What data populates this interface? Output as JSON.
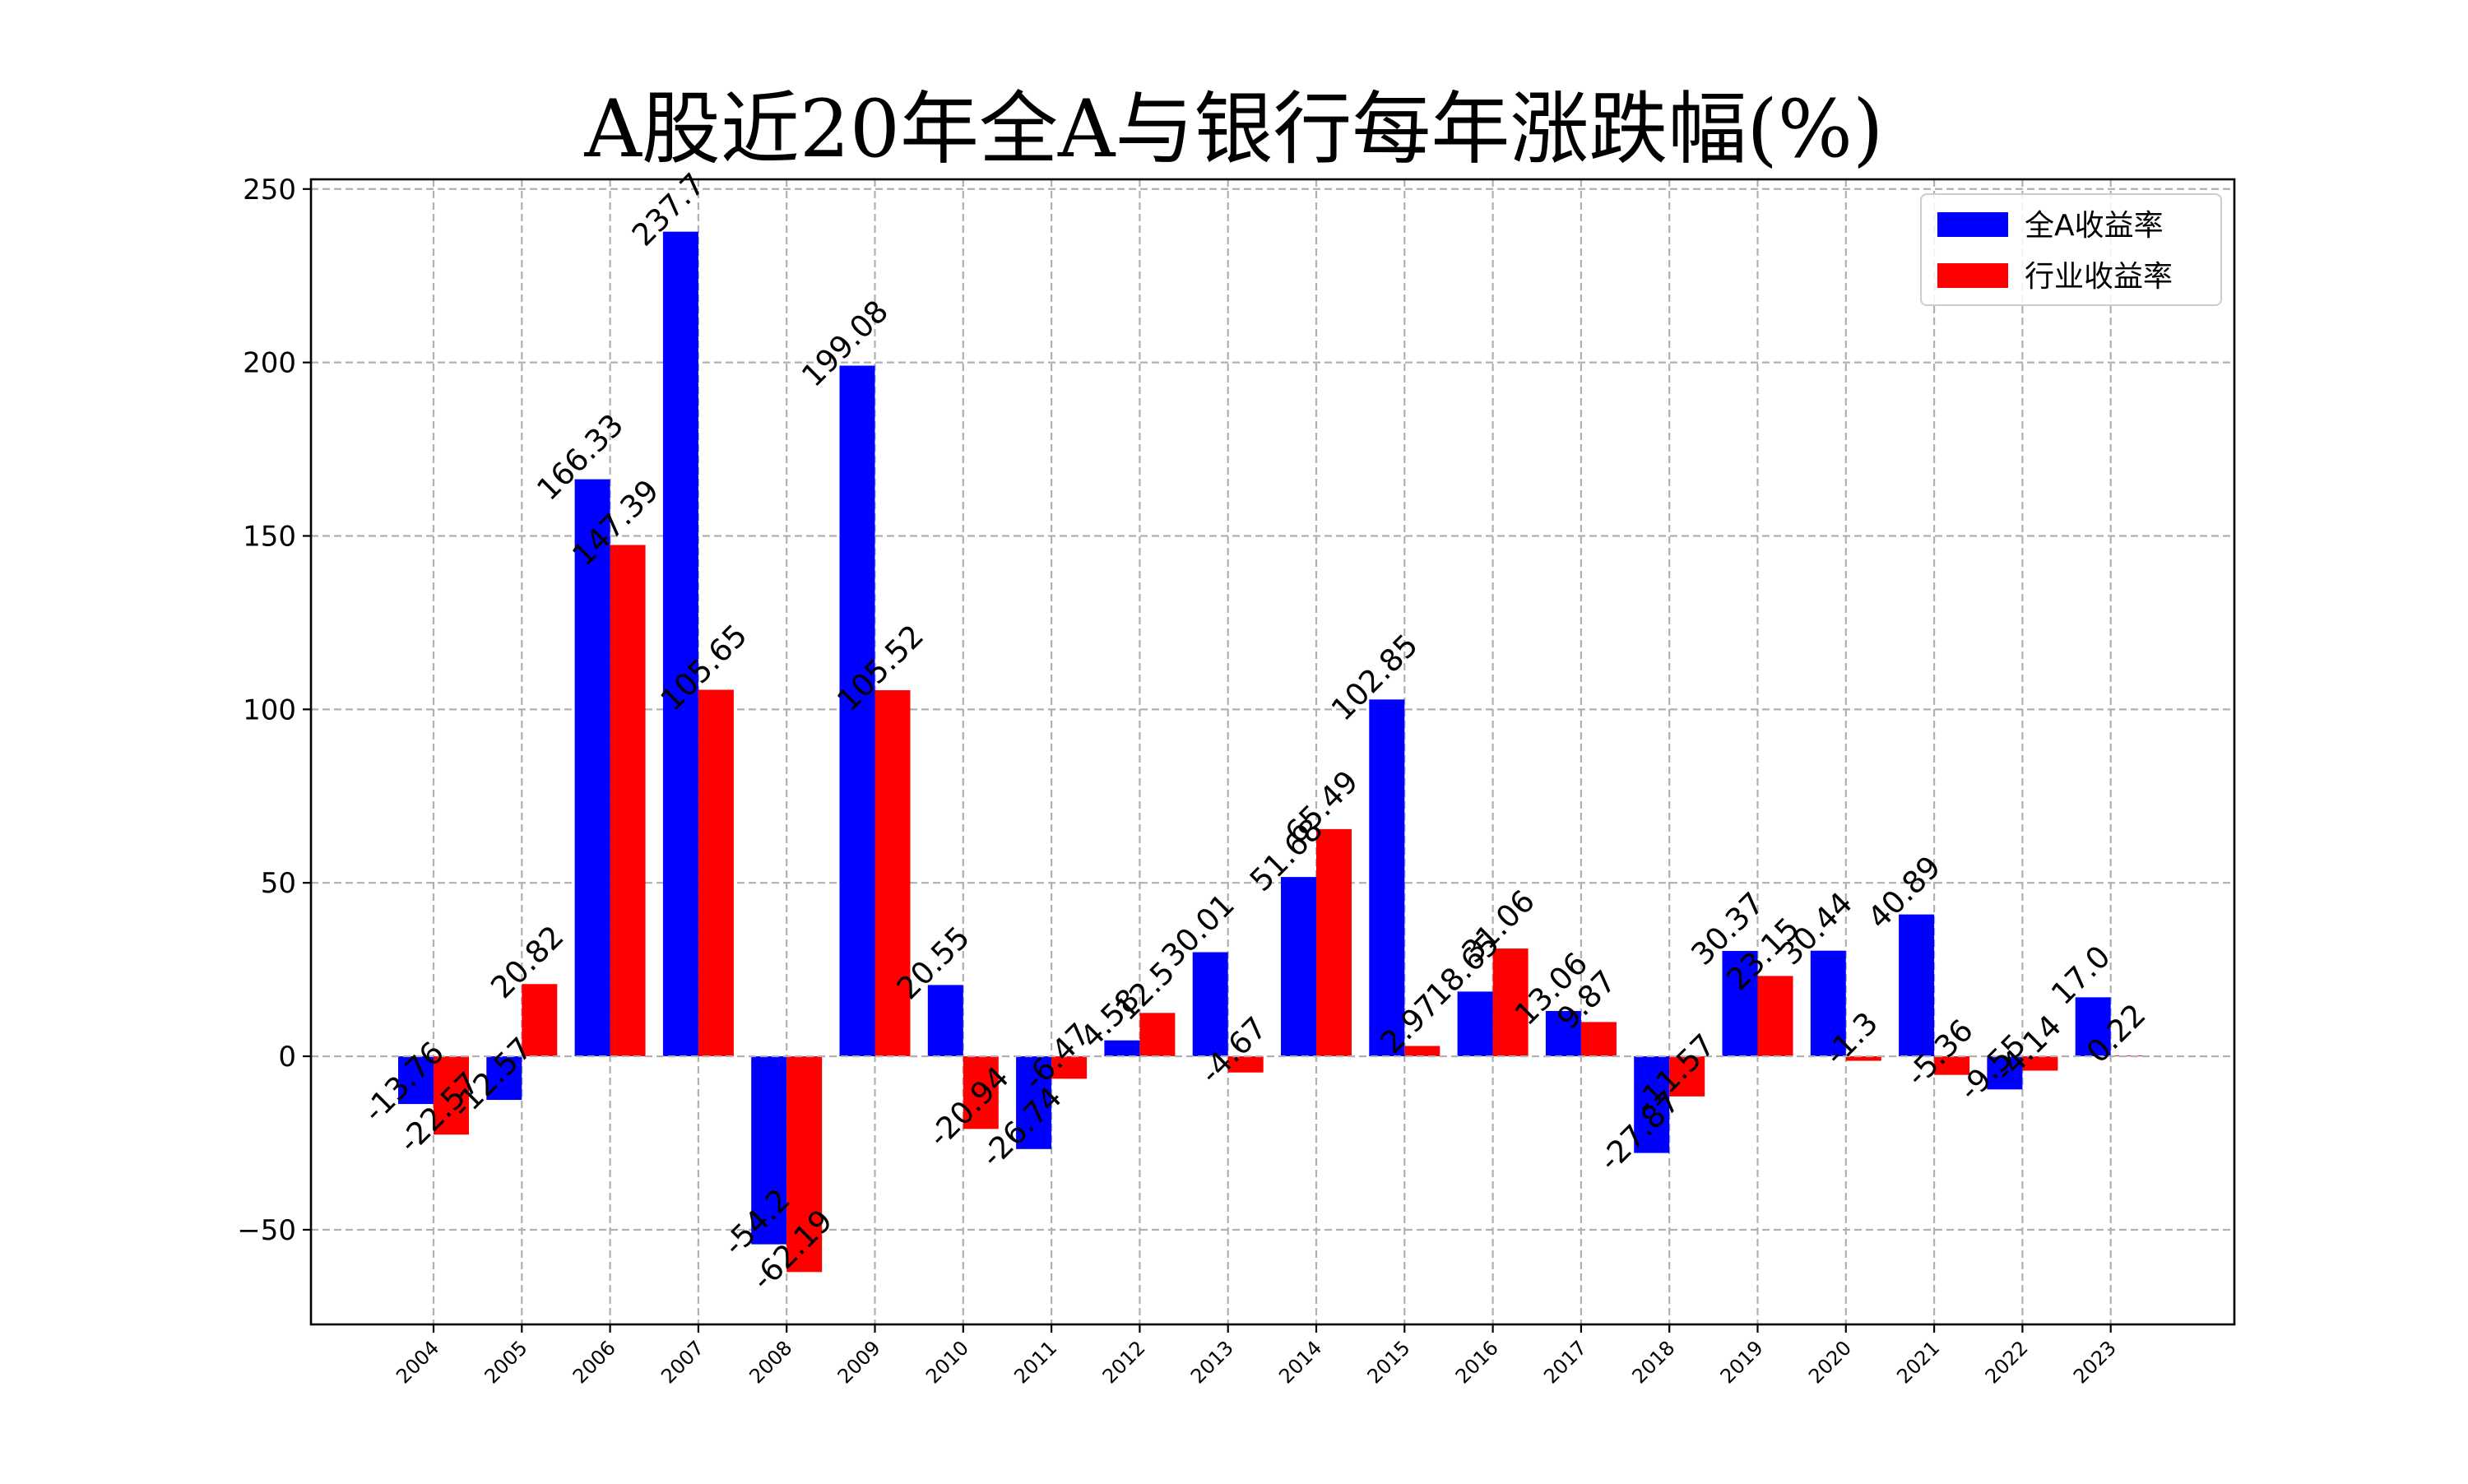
{
  "chart_data": {
    "type": "bar",
    "title": "A股近20年全A与银行每年涨跌幅(%)",
    "xlabel": "",
    "ylabel": "",
    "categories": [
      "2004",
      "2005",
      "2006",
      "2007",
      "2008",
      "2009",
      "2010",
      "2011",
      "2012",
      "2013",
      "2014",
      "2015",
      "2016",
      "2017",
      "2018",
      "2019",
      "2020",
      "2021",
      "2022",
      "2023"
    ],
    "series": [
      {
        "name": "全A收益率",
        "color": "#0000ff",
        "values": [
          -13.76,
          -12.57,
          166.33,
          237.7,
          -54.2,
          199.08,
          20.55,
          -26.74,
          4.58,
          30.01,
          51.68,
          102.85,
          18.65,
          13.06,
          -27.87,
          30.37,
          30.44,
          40.89,
          -9.55,
          17.0
        ],
        "labels": [
          "-13.76",
          "-12.57",
          "166.33",
          "237.7",
          "-54.2",
          "199.08",
          "20.55",
          "-26.74",
          "4.58",
          "30.01",
          "51.68",
          "102.85",
          "18.65",
          "13.06",
          "-27.87",
          "30.37",
          "30.44",
          "40.89",
          "-9.55",
          "17.0"
        ]
      },
      {
        "name": "行业收益率",
        "color": "#ff0000",
        "values": [
          -22.57,
          20.82,
          147.39,
          105.65,
          -62.19,
          105.52,
          -20.94,
          -6.47,
          12.5,
          -4.67,
          65.49,
          2.97,
          31.06,
          9.87,
          -11.57,
          23.15,
          -1.3,
          -5.36,
          -4.14,
          0.22
        ],
        "labels": [
          "-22.57",
          "20.82",
          "147.39",
          "105.65",
          "-62.19",
          "105.52",
          "-20.94",
          "-6.47",
          "12.5",
          "-4.67",
          "65.49",
          "2.97",
          "31.06",
          "9.87",
          "-11.57",
          "23.15",
          "-1.3",
          "-5.36",
          "-4.14",
          "0.22"
        ]
      }
    ],
    "yticks": [
      -50,
      0,
      50,
      100,
      150,
      200,
      250
    ],
    "ytick_labels": [
      "−50",
      "0",
      "50",
      "100",
      "150",
      "200",
      "250"
    ],
    "ylim": [
      -77.29,
      252.79
    ],
    "grid": true,
    "legend_position": "top-right"
  }
}
